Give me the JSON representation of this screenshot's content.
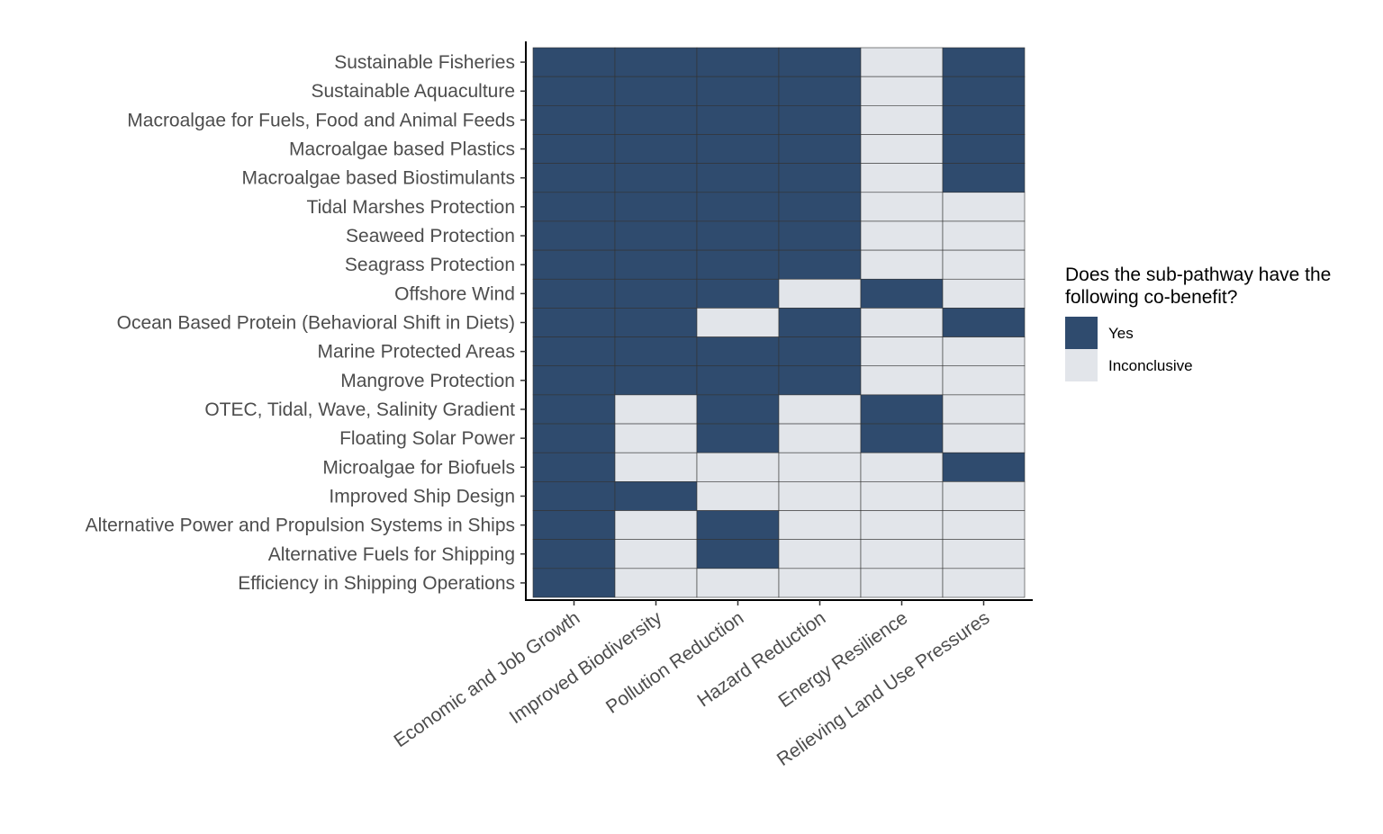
{
  "chart_data": {
    "type": "heatmap",
    "title": "",
    "xlabel": "",
    "ylabel": "",
    "x_categories": [
      "Economic and Job Growth",
      "Improved Biodiversity",
      "Pollution Reduction",
      "Hazard Reduction",
      "Energy Resilience",
      "Relieving Land Use Pressures"
    ],
    "y_categories": [
      "Sustainable Fisheries",
      "Sustainable Aquaculture",
      "Macroalgae for Fuels, Food and Animal Feeds",
      "Macroalgae based Plastics",
      "Macroalgae based Biostimulants",
      "Tidal Marshes Protection",
      "Seaweed Protection",
      "Seagrass Protection",
      "Offshore Wind",
      "Ocean Based Protein (Behavioral Shift in Diets)",
      "Marine Protected Areas",
      "Mangrove Protection",
      "OTEC, Tidal, Wave, Salinity Gradient",
      "Floating Solar Power",
      "Microalgae for Biofuels",
      "Improved Ship Design",
      "Alternative Power and Propulsion Systems in Ships",
      "Alternative Fuels for Shipping",
      "Efficiency in Shipping Operations"
    ],
    "values": [
      [
        "Yes",
        "Yes",
        "Yes",
        "Yes",
        "Inconclusive",
        "Yes"
      ],
      [
        "Yes",
        "Yes",
        "Yes",
        "Yes",
        "Inconclusive",
        "Yes"
      ],
      [
        "Yes",
        "Yes",
        "Yes",
        "Yes",
        "Inconclusive",
        "Yes"
      ],
      [
        "Yes",
        "Yes",
        "Yes",
        "Yes",
        "Inconclusive",
        "Yes"
      ],
      [
        "Yes",
        "Yes",
        "Yes",
        "Yes",
        "Inconclusive",
        "Yes"
      ],
      [
        "Yes",
        "Yes",
        "Yes",
        "Yes",
        "Inconclusive",
        "Inconclusive"
      ],
      [
        "Yes",
        "Yes",
        "Yes",
        "Yes",
        "Inconclusive",
        "Inconclusive"
      ],
      [
        "Yes",
        "Yes",
        "Yes",
        "Yes",
        "Inconclusive",
        "Inconclusive"
      ],
      [
        "Yes",
        "Yes",
        "Yes",
        "Inconclusive",
        "Yes",
        "Inconclusive"
      ],
      [
        "Yes",
        "Yes",
        "Inconclusive",
        "Yes",
        "Inconclusive",
        "Yes"
      ],
      [
        "Yes",
        "Yes",
        "Yes",
        "Yes",
        "Inconclusive",
        "Inconclusive"
      ],
      [
        "Yes",
        "Yes",
        "Yes",
        "Yes",
        "Inconclusive",
        "Inconclusive"
      ],
      [
        "Yes",
        "Inconclusive",
        "Yes",
        "Inconclusive",
        "Yes",
        "Inconclusive"
      ],
      [
        "Yes",
        "Inconclusive",
        "Yes",
        "Inconclusive",
        "Yes",
        "Inconclusive"
      ],
      [
        "Yes",
        "Inconclusive",
        "Inconclusive",
        "Inconclusive",
        "Inconclusive",
        "Yes"
      ],
      [
        "Yes",
        "Yes",
        "Inconclusive",
        "Inconclusive",
        "Inconclusive",
        "Inconclusive"
      ],
      [
        "Yes",
        "Inconclusive",
        "Yes",
        "Inconclusive",
        "Inconclusive",
        "Inconclusive"
      ],
      [
        "Yes",
        "Inconclusive",
        "Yes",
        "Inconclusive",
        "Inconclusive",
        "Inconclusive"
      ],
      [
        "Yes",
        "Inconclusive",
        "Inconclusive",
        "Inconclusive",
        "Inconclusive",
        "Inconclusive"
      ]
    ],
    "legend": {
      "title_line1": "Does the sub-pathway have the",
      "title_line2": "following co-benefit?",
      "placement": "right",
      "entries": [
        {
          "label": "Yes",
          "color": "#2f4b6e"
        },
        {
          "label": "Inconclusive",
          "color": "#e2e5ea"
        }
      ]
    },
    "grid": false
  }
}
